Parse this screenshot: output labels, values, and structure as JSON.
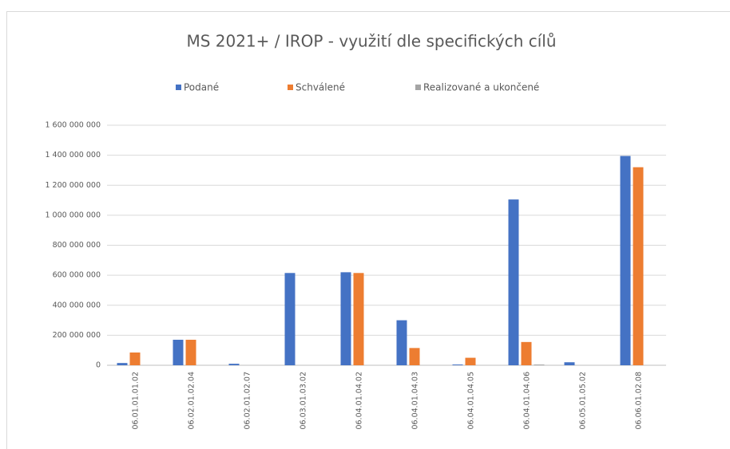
{
  "chart_data": {
    "type": "bar",
    "title": "MS 2021+  /   IROP - využití dle specifických cílů",
    "categories": [
      "06.01.01.01.02",
      "06.02.01.02.04",
      "06.02.01.02.07",
      "06.03.01.03.02",
      "06.04.01.04.02",
      "06.04.01.04.03",
      "06.04.01.04.05",
      "06.04.01.04.06",
      "06.05.01.05.02",
      "06.06.01.02.08"
    ],
    "series": [
      {
        "name": "Podané",
        "color": "#4472c4",
        "values": [
          15000000,
          170000000,
          10000000,
          615000000,
          620000000,
          300000000,
          5000000,
          1105000000,
          20000000,
          1395000000
        ]
      },
      {
        "name": "Schválené",
        "color": "#ed7d31",
        "values": [
          85000000,
          170000000,
          0,
          0,
          615000000,
          115000000,
          50000000,
          155000000,
          0,
          1320000000
        ]
      },
      {
        "name": "Realizované a ukončené",
        "color": "#a5a5a5",
        "values": [
          0,
          0,
          0,
          0,
          0,
          0,
          0,
          5000000,
          0,
          0
        ]
      }
    ],
    "ylim": [
      0,
      1600000000
    ],
    "yticks": [
      0,
      {
        "value": 200000000,
        "label": "200 000 000"
      },
      {
        "value": 400000000,
        "label": "400 000 000"
      },
      {
        "value": 600000000,
        "label": "600 000 000"
      },
      {
        "value": 800000000,
        "label": "800 000 000"
      },
      {
        "value": 1000000000,
        "label": "1 000 000 000"
      },
      {
        "value": 1200000000,
        "label": "1 200 000 000"
      },
      {
        "value": 1400000000,
        "label": "1 400 000 000"
      },
      {
        "value": 1600000000,
        "label": "1 600 000 000"
      }
    ],
    "grid": true,
    "legend": "top"
  }
}
